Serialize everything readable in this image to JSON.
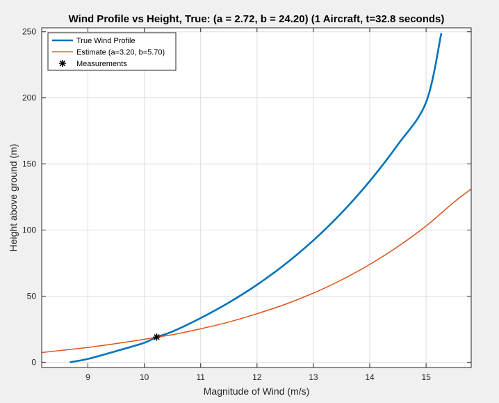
{
  "chart_data": {
    "type": "line",
    "title": "Wind Profile vs Height, True: (a = 2.72, b = 24.20) (1 Aircraft, t=32.8 seconds)",
    "xlabel": "Magnitude of Wind (m/s)",
    "ylabel": "Height above ground (m)",
    "xlim": [
      8.18,
      15.8
    ],
    "ylim": [
      -4,
      253
    ],
    "xticks": [
      9,
      10,
      11,
      12,
      13,
      14,
      15
    ],
    "yticks": [
      0,
      50,
      100,
      150,
      200,
      250
    ],
    "grid": true,
    "legend_position": "top-left",
    "series": [
      {
        "name": "True Wind Profile",
        "color": "#0072bd",
        "x": [
          8.68,
          9.0,
          9.5,
          10.0,
          10.22,
          10.5,
          11.0,
          11.5,
          12.0,
          12.5,
          13.0,
          13.5,
          14.0,
          14.5,
          15.0,
          15.27
        ],
        "y": [
          0,
          2.5,
          8.4,
          14.7,
          19.0,
          23.2,
          33.4,
          45.1,
          58.6,
          74.2,
          92.2,
          113.0,
          137.0,
          164.7,
          196.7,
          249.0
        ]
      },
      {
        "name": "Estimate (a=3.20, b=5.70)",
        "color": "#d95319",
        "x": [
          8.18,
          8.5,
          9.0,
          9.5,
          10.0,
          10.22,
          10.5,
          11.0,
          11.5,
          12.0,
          12.5,
          13.0,
          13.5,
          14.0,
          14.5,
          15.0,
          15.5,
          15.8
        ],
        "y": [
          7.3,
          8.8,
          11.2,
          14.1,
          17.3,
          19.0,
          20.8,
          25.3,
          30.4,
          36.7,
          43.8,
          52.3,
          62.3,
          74.0,
          87.5,
          103.1,
          121.3,
          131.0
        ]
      },
      {
        "name": "Measurements",
        "color": "#000000",
        "marker": "asterisk",
        "x": [
          10.22
        ],
        "y": [
          19.0
        ]
      }
    ]
  }
}
